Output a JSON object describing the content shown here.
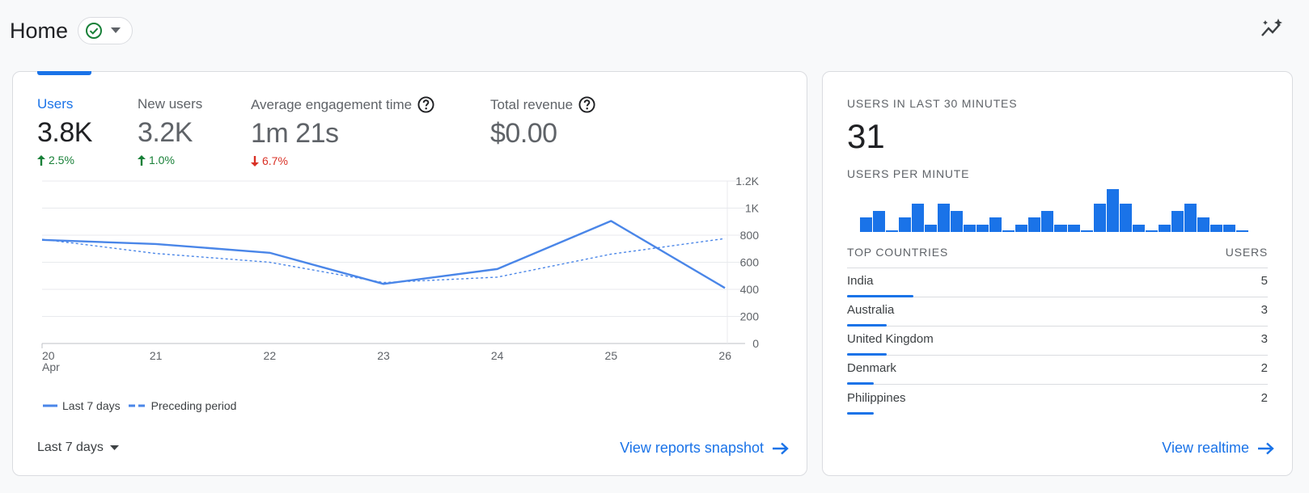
{
  "header": {
    "title": "Home"
  },
  "metrics": [
    {
      "label": "Users",
      "value": "3.8K",
      "change": "2.5%",
      "direction": "up"
    },
    {
      "label": "New users",
      "value": "3.2K",
      "change": "1.0%",
      "direction": "up"
    },
    {
      "label": "Average engagement time",
      "value": "1m 21s",
      "change": "6.7%",
      "direction": "down"
    },
    {
      "label": "Total revenue",
      "value": "$0.00"
    }
  ],
  "chart_data": {
    "type": "line",
    "x": [
      "20",
      "21",
      "22",
      "23",
      "24",
      "25",
      "26"
    ],
    "x_sublabel": "Apr",
    "series": [
      {
        "name": "Last 7 days",
        "style": "solid",
        "values": [
          765,
          735,
          670,
          440,
          550,
          905,
          410
        ]
      },
      {
        "name": "Preceding period",
        "style": "dashed",
        "values": [
          770,
          665,
          600,
          450,
          490,
          660,
          775
        ]
      }
    ],
    "y_ticks": [
      "0",
      "200",
      "400",
      "600",
      "800",
      "1K",
      "1.2K"
    ],
    "ylim": [
      0,
      1200
    ],
    "grid": true,
    "legend_position": "bottom-left",
    "colors": {
      "line": "#4a86e8"
    }
  },
  "footer": {
    "date_range": "Last 7 days",
    "link": "View reports snapshot"
  },
  "realtime": {
    "heading": "USERS IN LAST 30 MINUTES",
    "value": "31",
    "per_minute_heading": "USERS PER MINUTE",
    "per_minute": [
      1,
      1.5,
      0,
      1,
      2,
      0.5,
      2,
      1.5,
      0.5,
      0.5,
      1,
      0,
      0.5,
      1,
      1.5,
      0.5,
      0.5,
      0,
      2,
      3,
      2,
      0.5,
      0,
      0.5,
      1.5,
      2,
      1,
      0.5,
      0.5,
      0
    ],
    "table_headers": {
      "country": "TOP COUNTRIES",
      "users": "USERS"
    },
    "countries": [
      {
        "name": "India",
        "users": "5",
        "share": 1.0
      },
      {
        "name": "Australia",
        "users": "3",
        "share": 0.6
      },
      {
        "name": "United Kingdom",
        "users": "3",
        "share": 0.6
      },
      {
        "name": "Denmark",
        "users": "2",
        "share": 0.4
      },
      {
        "name": "Philippines",
        "users": "2",
        "share": 0.4
      }
    ],
    "link": "View realtime"
  },
  "colors": {
    "accent": "#1a73e8",
    "up": "#188038",
    "down": "#d93025",
    "check": "#188038"
  }
}
